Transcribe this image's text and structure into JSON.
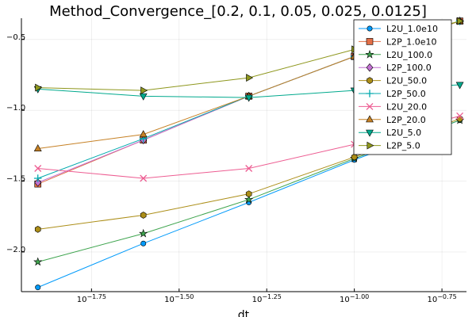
{
  "chart_data": {
    "type": "line",
    "title": "Method_Convergence_[0.2, 0.1, 0.05, 0.025, 0.0125]",
    "xlabel": "dt",
    "ylabel": "",
    "x_scale": "log10",
    "x": [
      0.0125,
      0.025,
      0.05,
      0.1,
      0.2
    ],
    "xlim_log10": [
      -1.95,
      -0.68
    ],
    "ylim_log10": [
      -2.28,
      -0.35
    ],
    "x_ticks": [
      {
        "exp": -1.75,
        "base": "10",
        "power": "−1.75"
      },
      {
        "exp": -1.5,
        "base": "10",
        "power": "−1.50"
      },
      {
        "exp": -1.25,
        "base": "10",
        "power": "−1.25"
      },
      {
        "exp": -1.0,
        "base": "10",
        "power": "−1.00"
      },
      {
        "exp": -0.75,
        "base": "10",
        "power": "−0.75"
      }
    ],
    "y_ticks": [
      {
        "exp": -2.0,
        "base": "",
        "power": "−2.0"
      },
      {
        "exp": -1.5,
        "base": "",
        "power": "−1.5"
      },
      {
        "exp": -1.0,
        "base": "",
        "power": "−1.0"
      },
      {
        "exp": -0.5,
        "base": "",
        "power": "−0.5"
      }
    ],
    "grid": true,
    "legend_position": "top-right",
    "series": [
      {
        "name": "L2U_1.0e10",
        "color": "#009AFA",
        "marker": "circle",
        "values_log10": [
          -2.25,
          -1.94,
          -1.65,
          -1.35,
          -1.07
        ]
      },
      {
        "name": "L2P_1.0e10",
        "color": "#E36F47",
        "marker": "square",
        "values_log10": [
          -1.52,
          -1.21,
          -0.9,
          -0.62,
          -0.37
        ]
      },
      {
        "name": "L2U_100.0",
        "color": "#3EA44E",
        "marker": "star",
        "values_log10": [
          -2.07,
          -1.87,
          -1.63,
          -1.34,
          -1.07
        ]
      },
      {
        "name": "L2P_100.0",
        "color": "#C371D2",
        "marker": "diamond",
        "values_log10": [
          -1.51,
          -1.21,
          -0.9,
          -0.62,
          -0.37
        ]
      },
      {
        "name": "L2U_50.0",
        "color": "#AC8E18",
        "marker": "hexagon",
        "values_log10": [
          -1.84,
          -1.74,
          -1.59,
          -1.33,
          -1.06
        ]
      },
      {
        "name": "L2P_50.0",
        "color": "#00A9AD",
        "marker": "cross",
        "values_log10": [
          -1.48,
          -1.2,
          -0.9,
          -0.62,
          -0.37
        ]
      },
      {
        "name": "L2U_20.0",
        "color": "#ED5D92",
        "marker": "xcross",
        "values_log10": [
          -1.41,
          -1.48,
          -1.41,
          -1.24,
          -1.04
        ]
      },
      {
        "name": "L2P_20.0",
        "color": "#C68125",
        "marker": "utriangle",
        "values_log10": [
          -1.27,
          -1.17,
          -0.9,
          -0.62,
          -0.37
        ]
      },
      {
        "name": "L2U_5.0",
        "color": "#00A98D",
        "marker": "dtriangle",
        "values_log10": [
          -0.85,
          -0.9,
          -0.91,
          -0.86,
          -0.82
        ]
      },
      {
        "name": "L2P_5.0",
        "color": "#8E971D",
        "marker": "rtriangle",
        "values_log10": [
          -0.84,
          -0.86,
          -0.77,
          -0.57,
          -0.37
        ]
      }
    ]
  }
}
